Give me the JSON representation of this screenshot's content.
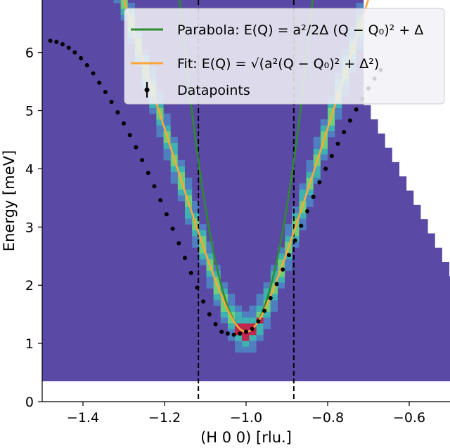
{
  "chart_data": {
    "type": "heatmap",
    "title": "",
    "xlabel": "(H 0 0) [rlu.]",
    "ylabel": "Energy [meV]",
    "xlim": [
      -1.5,
      -0.5
    ],
    "ylim": [
      0,
      6.9
    ],
    "x_ticks": [
      -1.4,
      -1.2,
      -1.0,
      -0.8,
      -0.6
    ],
    "x_tick_labels": [
      "−1.4",
      "−1.2",
      "−1.0",
      "−0.8",
      "−0.6"
    ],
    "y_ticks": [
      0,
      1,
      2,
      3,
      4,
      5,
      6
    ],
    "y_tick_labels": [
      "0",
      "1",
      "2",
      "3",
      "4",
      "5",
      "6"
    ],
    "grid": false,
    "legend_position": "top-right",
    "vertical_lines": [
      -1.117,
      -0.883
    ],
    "fit_params": {
      "a": 22.7,
      "Q0": -1.0,
      "gap": 1.2
    },
    "parabola_params": {
      "a": 22.7,
      "Q0": -1.0,
      "gap": 1.2
    },
    "colors": {
      "background": "#5a4aa6",
      "parabola": "#2e8b2e",
      "fit": "#ffa53a",
      "datapoints": "#000000",
      "vline": "#000000"
    },
    "series": [
      {
        "name": "Parabola",
        "legend_text": "Parabola: E(Q) = a²/2Δ (Q − Q₀)² + Δ",
        "kind": "line"
      },
      {
        "name": "Fit",
        "legend_text": "Fit: E(Q) = √(a²(Q − Q₀)² + Δ²)",
        "kind": "line"
      },
      {
        "name": "Datapoints",
        "legend_text": "Datapoints",
        "kind": "points",
        "x": [
          -1.48,
          -1.465,
          -1.45,
          -1.435,
          -1.42,
          -1.405,
          -1.39,
          -1.375,
          -1.36,
          -1.345,
          -1.33,
          -1.315,
          -1.3,
          -1.285,
          -1.27,
          -1.255,
          -1.24,
          -1.225,
          -1.21,
          -1.195,
          -1.18,
          -1.165,
          -1.15,
          -1.135,
          -1.12,
          -1.105,
          -1.09,
          -1.075,
          -1.06,
          -1.045,
          -1.03,
          -1.015,
          -1.0,
          -0.985,
          -0.97,
          -0.955,
          -0.94,
          -0.925,
          -0.91,
          -0.895,
          -0.88,
          -0.865,
          -0.85,
          -0.835,
          -0.82,
          -0.805,
          -0.79,
          -0.775,
          -0.76,
          -0.745,
          -0.73,
          -0.715,
          -0.7,
          -0.685,
          -0.67
        ],
        "y": [
          6.2,
          6.18,
          6.14,
          6.08,
          6.0,
          5.9,
          5.78,
          5.64,
          5.48,
          5.32,
          5.15,
          4.97,
          4.78,
          4.58,
          4.37,
          4.15,
          3.93,
          3.7,
          3.46,
          3.22,
          2.97,
          2.72,
          2.47,
          2.21,
          1.96,
          1.72,
          1.5,
          1.33,
          1.2,
          1.17,
          1.15,
          1.17,
          1.2,
          1.25,
          1.38,
          1.56,
          1.78,
          2.02,
          2.27,
          2.52,
          2.77,
          3.02,
          3.27,
          3.52,
          3.77,
          4.0,
          4.22,
          4.43,
          4.63,
          4.83,
          5.02,
          5.2,
          5.38,
          5.55,
          5.7
        ]
      }
    ]
  }
}
